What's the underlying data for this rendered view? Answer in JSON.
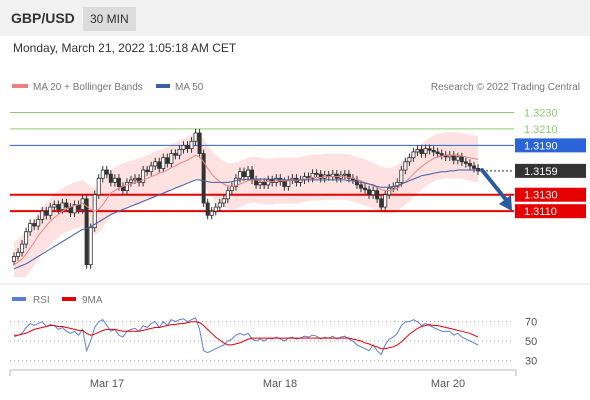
{
  "header": {
    "symbol": "GBP/USD",
    "interval": "30 MIN",
    "datetime": "Monday, March 21, 2022 1:05:18 AM CET"
  },
  "legend": {
    "ma20": "MA 20 + Bollinger Bands",
    "ma50": "MA 50",
    "credit": "Research © 2022 Trading Central",
    "rsi": "RSI",
    "rsi_ma": "9MA"
  },
  "colors": {
    "ma20": "#f08080",
    "ma50": "#3b5ea8",
    "band": "#fdd8d8",
    "resistance": "#8fcc6f",
    "pivot": "#2a64d8",
    "support": "#e60000",
    "last": "#333333",
    "rsi": "#5a7fd8",
    "rsi_ma": "#e60000",
    "arrow": "#2a5aa0"
  },
  "chart_data": [
    {
      "type": "candlestick",
      "ylim": [
        1.303,
        1.325
      ],
      "x_ticks": [
        "Mar 17",
        "Mar 18",
        "Mar 20"
      ],
      "levels": [
        {
          "label": "1.3230",
          "value": 1.323,
          "kind": "resistance"
        },
        {
          "label": "1.3210",
          "value": 1.321,
          "kind": "resistance"
        },
        {
          "label": "1.3190",
          "value": 1.319,
          "kind": "pivot"
        },
        {
          "label": "1.3159",
          "value": 1.3159,
          "kind": "last"
        },
        {
          "label": "1.3130",
          "value": 1.313,
          "kind": "support"
        },
        {
          "label": "1.3110",
          "value": 1.311,
          "kind": "support"
        }
      ],
      "close": [
        1.3055,
        1.306,
        1.307,
        1.3085,
        1.3095,
        1.3092,
        1.31,
        1.311,
        1.3105,
        1.3115,
        1.3118,
        1.3112,
        1.312,
        1.3115,
        1.3108,
        1.3118,
        1.3112,
        1.3125,
        1.3045,
        1.309,
        1.313,
        1.315,
        1.316,
        1.3155,
        1.3145,
        1.315,
        1.314,
        1.3135,
        1.3145,
        1.3148,
        1.315,
        1.3145,
        1.316,
        1.3158,
        1.3165,
        1.317,
        1.3162,
        1.3175,
        1.3168,
        1.318,
        1.3178,
        1.3185,
        1.319,
        1.3186,
        1.3195,
        1.3205,
        1.318,
        1.312,
        1.3105,
        1.311,
        1.3115,
        1.312,
        1.3125,
        1.3135,
        1.314,
        1.315,
        1.3158,
        1.3152,
        1.316,
        1.3148,
        1.3142,
        1.3145,
        1.3142,
        1.3148,
        1.3145,
        1.315,
        1.3146,
        1.314,
        1.3148,
        1.315,
        1.3145,
        1.3148,
        1.3152,
        1.315,
        1.3156,
        1.3155,
        1.315,
        1.3154,
        1.3152,
        1.3155,
        1.315,
        1.3154,
        1.3155,
        1.315,
        1.3148,
        1.3142,
        1.3138,
        1.3136,
        1.313,
        1.3135,
        1.3125,
        1.3115,
        1.313,
        1.3138,
        1.314,
        1.3145,
        1.316,
        1.317,
        1.3175,
        1.3182,
        1.3185,
        1.318,
        1.3186,
        1.3184,
        1.3182,
        1.318,
        1.3178,
        1.3176,
        1.3178,
        1.3172,
        1.3176,
        1.317,
        1.3168,
        1.3165,
        1.3162,
        1.3159
      ],
      "ma20": [
        1.3045,
        1.3048,
        1.3052,
        1.3058,
        1.3065,
        1.3072,
        1.308,
        1.3086,
        1.3092,
        1.3098,
        1.3102,
        1.3106,
        1.311,
        1.3113,
        1.3115,
        1.3117,
        1.3118,
        1.312,
        1.3116,
        1.3112,
        1.311,
        1.3112,
        1.3118,
        1.3125,
        1.3132,
        1.3135,
        1.3138,
        1.314,
        1.3142,
        1.3143,
        1.3145,
        1.3146,
        1.3148,
        1.315,
        1.3152,
        1.3154,
        1.3156,
        1.3158,
        1.316,
        1.3163,
        1.3165,
        1.3168,
        1.317,
        1.3172,
        1.3175,
        1.3178,
        1.3176,
        1.317,
        1.3162,
        1.3155,
        1.315,
        1.3146,
        1.3143,
        1.3141,
        1.314,
        1.3141,
        1.3143,
        1.3145,
        1.3147,
        1.3148,
        1.3148,
        1.3147,
        1.3146,
        1.3146,
        1.3146,
        1.3147,
        1.3147,
        1.3147,
        1.3147,
        1.3147,
        1.3147,
        1.3148,
        1.3149,
        1.315,
        1.3151,
        1.3151,
        1.3151,
        1.3152,
        1.3152,
        1.3152,
        1.3152,
        1.3152,
        1.3152,
        1.3151,
        1.315,
        1.3148,
        1.3147,
        1.3145,
        1.3143,
        1.3141,
        1.3139,
        1.3136,
        1.3135,
        1.3135,
        1.3136,
        1.3138,
        1.3142,
        1.3146,
        1.315,
        1.3155,
        1.316,
        1.3164,
        1.3168,
        1.3171,
        1.3174,
        1.3176,
        1.3177,
        1.3178,
        1.3178,
        1.3178,
        1.3178,
        1.3177,
        1.3176,
        1.3175,
        1.3174,
        1.3173
      ],
      "ma50": [
        1.304,
        1.3042,
        1.3044,
        1.3046,
        1.3049,
        1.3052,
        1.3055,
        1.3058,
        1.3061,
        1.3064,
        1.3067,
        1.307,
        1.3073,
        1.3076,
        1.3079,
        1.3082,
        1.3085,
        1.3088,
        1.3089,
        1.3091,
        1.3094,
        1.3097,
        1.31,
        1.3103,
        1.3106,
        1.3108,
        1.311,
        1.3112,
        1.3114,
        1.3116,
        1.3118,
        1.312,
        1.3122,
        1.3124,
        1.3126,
        1.3128,
        1.313,
        1.3132,
        1.3134,
        1.3136,
        1.3138,
        1.314,
        1.3142,
        1.3144,
        1.3146,
        1.3148,
        1.3148,
        1.3147,
        1.3146,
        1.3145,
        1.3145,
        1.3145,
        1.3145,
        1.3145,
        1.3146,
        1.3147,
        1.3148,
        1.3148,
        1.3149,
        1.3149,
        1.3149,
        1.3149,
        1.3149,
        1.3149,
        1.3149,
        1.3149,
        1.3149,
        1.3148,
        1.3148,
        1.3148,
        1.3148,
        1.3148,
        1.3148,
        1.3148,
        1.3148,
        1.3148,
        1.3148,
        1.3148,
        1.3148,
        1.3148,
        1.3148,
        1.3148,
        1.3148,
        1.3147,
        1.3147,
        1.3146,
        1.3145,
        1.3144,
        1.3143,
        1.3142,
        1.314,
        1.3139,
        1.3139,
        1.3139,
        1.314,
        1.3141,
        1.3143,
        1.3145,
        1.3147,
        1.3149,
        1.3151,
        1.3153,
        1.3154,
        1.3155,
        1.3156,
        1.3157,
        1.3158,
        1.3158,
        1.3159,
        1.3159,
        1.316,
        1.316,
        1.316,
        1.316,
        1.316,
        1.316
      ]
    },
    {
      "type": "line",
      "name": "RSI",
      "ylim": [
        20,
        80
      ],
      "y_ticks": [
        "70",
        "50",
        "30"
      ],
      "series": [
        {
          "name": "RSI",
          "values": [
            54,
            56,
            58,
            64,
            68,
            66,
            68,
            70,
            65,
            67,
            66,
            62,
            64,
            60,
            58,
            60,
            56,
            62,
            40,
            50,
            64,
            70,
            72,
            66,
            60,
            62,
            56,
            54,
            60,
            62,
            63,
            60,
            66,
            64,
            68,
            70,
            64,
            70,
            66,
            72,
            70,
            72,
            73,
            70,
            72,
            74,
            62,
            40,
            38,
            40,
            42,
            44,
            46,
            50,
            52,
            56,
            58,
            56,
            58,
            52,
            50,
            52,
            50,
            53,
            52,
            54,
            52,
            50,
            53,
            54,
            52,
            53,
            55,
            54,
            56,
            55,
            52,
            54,
            53,
            55,
            52,
            54,
            55,
            52,
            50,
            46,
            44,
            42,
            40,
            46,
            40,
            36,
            46,
            52,
            54,
            58,
            66,
            70,
            70,
            72,
            70,
            66,
            68,
            66,
            64,
            62,
            60,
            60,
            60,
            56,
            58,
            54,
            52,
            50,
            48,
            46
          ]
        },
        {
          "name": "9MA",
          "values": [
            56,
            56,
            57,
            58,
            60,
            62,
            63,
            64,
            65,
            66,
            66,
            65,
            65,
            64,
            63,
            62,
            61,
            61,
            58,
            56,
            57,
            59,
            61,
            62,
            62,
            62,
            61,
            60,
            60,
            60,
            60,
            60,
            61,
            62,
            63,
            64,
            64,
            65,
            66,
            67,
            67,
            68,
            68,
            69,
            70,
            70,
            69,
            66,
            62,
            58,
            54,
            51,
            48,
            46,
            46,
            47,
            48,
            50,
            52,
            53,
            53,
            53,
            53,
            53,
            53,
            53,
            53,
            53,
            53,
            53,
            53,
            53,
            53,
            53,
            53,
            53,
            53,
            53,
            53,
            53,
            53,
            53,
            53,
            53,
            52,
            51,
            50,
            48,
            47,
            45,
            44,
            42,
            42,
            43,
            44,
            46,
            49,
            53,
            57,
            60,
            63,
            65,
            66,
            67,
            66,
            66,
            65,
            64,
            63,
            62,
            61,
            60,
            59,
            58,
            56,
            54
          ]
        }
      ]
    }
  ]
}
